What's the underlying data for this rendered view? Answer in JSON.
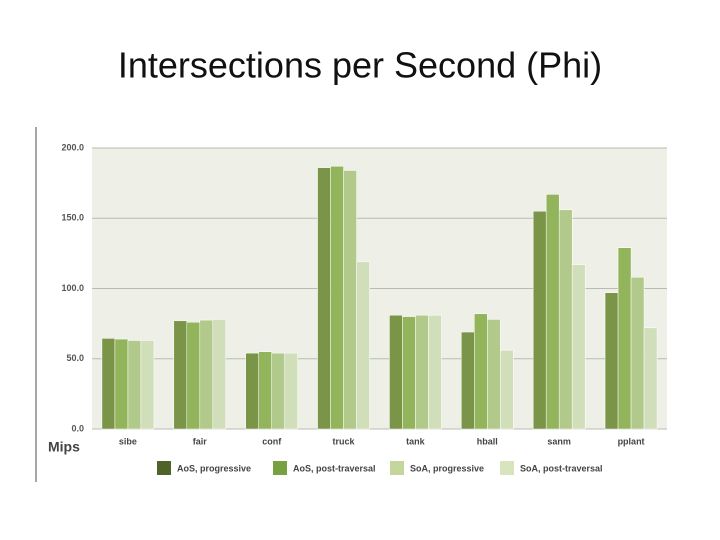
{
  "chart_data": {
    "type": "bar",
    "title": "Intersections per Second (Phi)",
    "y_label": "Mips",
    "categories": [
      "sibe",
      "fair",
      "conf",
      "truck",
      "tank",
      "hball",
      "sanm",
      "pplant"
    ],
    "series": [
      {
        "name": "AoS, progressive",
        "color": "#7a9448",
        "legend_color": "#4f6228",
        "values": [
          64.5,
          77,
          54,
          186,
          81,
          69,
          155,
          97
        ]
      },
      {
        "name": "AoS, post-traversal",
        "color": "#92b45a",
        "legend_color": "#77a043",
        "values": [
          64,
          76,
          55,
          187,
          80,
          82,
          167,
          129
        ]
      },
      {
        "name": "SoA, progressive",
        "color": "#b1c98b",
        "legend_color": "#c3d69b",
        "values": [
          63,
          77.5,
          54,
          184,
          81,
          78,
          156,
          108
        ]
      },
      {
        "name": "SoA, post-traversal",
        "color": "#d0deba",
        "legend_color": "#d7e4bd",
        "values": [
          63,
          78,
          54,
          119,
          81,
          56,
          117,
          72
        ]
      }
    ],
    "ylim": [
      0,
      200
    ],
    "yticks": [
      {
        "value": 0,
        "label": "0.0"
      },
      {
        "value": 50,
        "label": "50.0"
      },
      {
        "value": 100,
        "label": "100.0"
      },
      {
        "value": 150,
        "label": "150.0"
      },
      {
        "value": 200,
        "label": "200.0"
      }
    ],
    "grid": true,
    "legend": "bottom"
  }
}
